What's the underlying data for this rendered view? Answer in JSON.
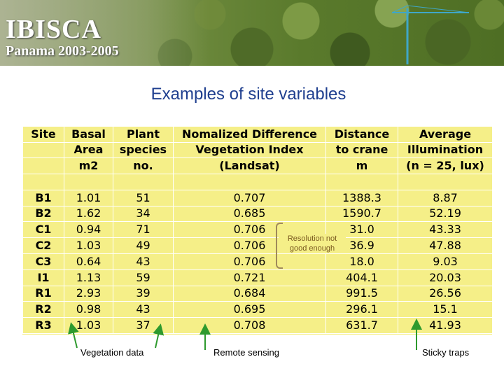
{
  "banner": {
    "title": "IBISCA",
    "subtitle": "Panama 2003-2005"
  },
  "slide": {
    "title": "Examples of site variables"
  },
  "table": {
    "headers": [
      [
        "Site",
        "",
        ""
      ],
      [
        "Basal",
        "Area",
        "m2"
      ],
      [
        "Plant",
        "species",
        "no."
      ],
      [
        "Nomalized Difference",
        "Vegetation Index",
        "(Landsat)"
      ],
      [
        "Distance",
        "to crane",
        "m"
      ],
      [
        "Average",
        "Illumination",
        "(n = 25, lux)"
      ]
    ],
    "rows": [
      [
        "B1",
        "1.01",
        "51",
        "0.707",
        "1388.3",
        "8.87"
      ],
      [
        "B2",
        "1.62",
        "34",
        "0.685",
        "1590.7",
        "52.19"
      ],
      [
        "C1",
        "0.94",
        "71",
        "0.706",
        "31.0",
        "43.33"
      ],
      [
        "C2",
        "1.03",
        "49",
        "0.706",
        "36.9",
        "47.88"
      ],
      [
        "C3",
        "0.64",
        "43",
        "0.706",
        "18.0",
        "9.03"
      ],
      [
        "I1",
        "1.13",
        "59",
        "0.721",
        "404.1",
        "20.03"
      ],
      [
        "R1",
        "2.93",
        "39",
        "0.684",
        "991.5",
        "26.56"
      ],
      [
        "R2",
        "0.98",
        "43",
        "0.695",
        "296.1",
        "15.1"
      ],
      [
        "R3",
        "1.03",
        "37",
        "0.708",
        "631.7",
        "41.93"
      ]
    ]
  },
  "annotation": {
    "line1": "Resolution not",
    "line2": "good enough"
  },
  "captions": {
    "vegetation": "Vegetation data",
    "remote": "Remote sensing",
    "sticky": "Sticky traps"
  },
  "colors": {
    "title": "#1f3f8f",
    "table_bg": "#f5ef88",
    "arrow": "#2e9a2e"
  }
}
